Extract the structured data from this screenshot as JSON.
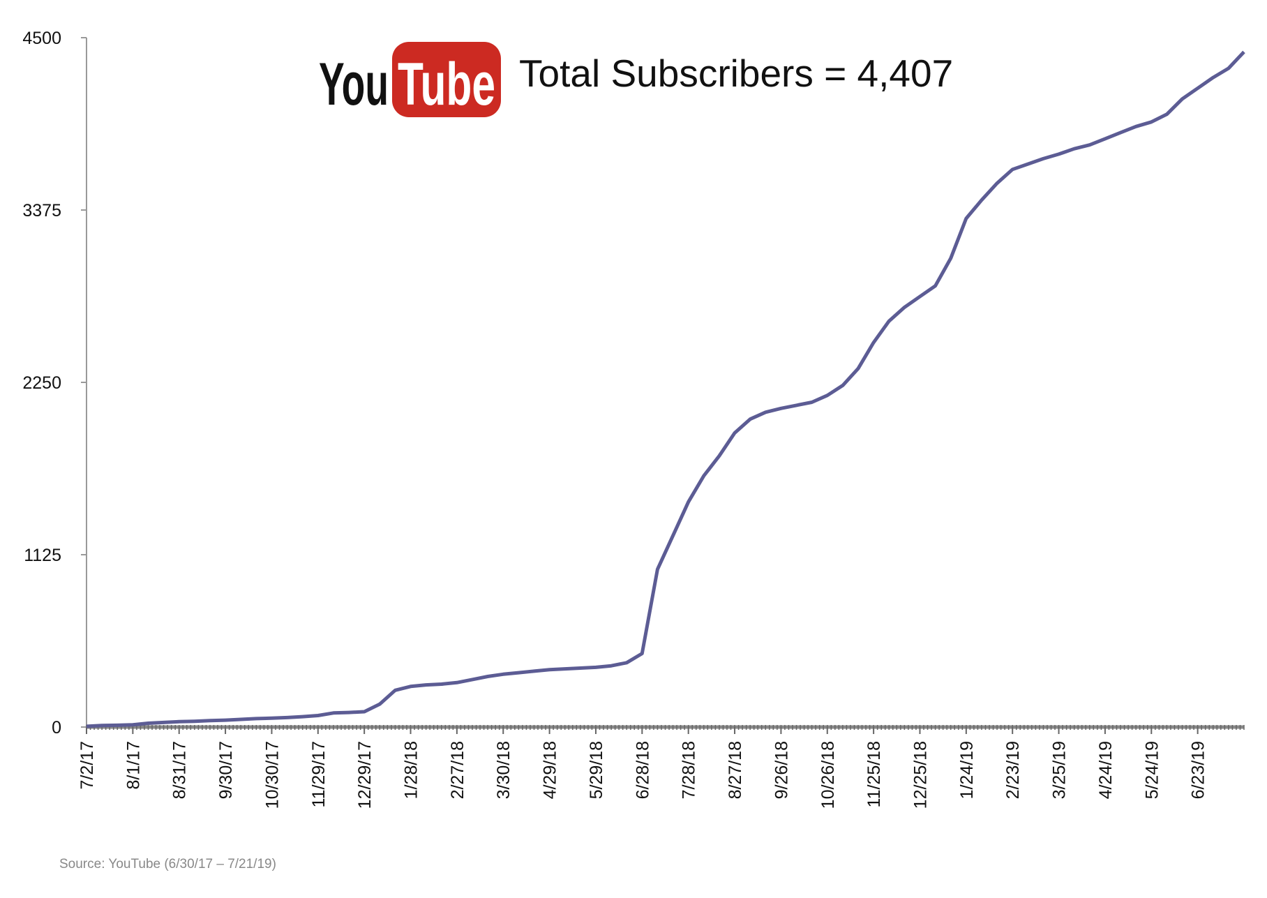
{
  "chart_data": {
    "type": "line",
    "title": "Total Subscribers = 4,407",
    "logo": [
      "You",
      "Tube"
    ],
    "source": "Source: YouTube (6/30/17 – 7/21/19)",
    "categories": [
      "7/2/17",
      null,
      null,
      "8/1/17",
      null,
      null,
      "8/31/17",
      null,
      null,
      "9/30/17",
      null,
      null,
      "10/30/17",
      null,
      null,
      "11/29/17",
      null,
      null,
      "12/29/17",
      null,
      null,
      "1/28/18",
      null,
      null,
      "2/27/18",
      null,
      null,
      "3/30/18",
      null,
      null,
      "4/29/18",
      null,
      null,
      "5/29/18",
      null,
      null,
      "6/28/18",
      null,
      null,
      "7/28/18",
      null,
      null,
      "8/27/18",
      null,
      null,
      "9/26/18",
      null,
      null,
      "10/26/18",
      null,
      null,
      "11/25/18",
      null,
      null,
      "12/25/18",
      null,
      null,
      "1/24/19",
      null,
      null,
      "2/23/19",
      null,
      null,
      "3/25/19",
      null,
      null,
      "4/24/19",
      null,
      null,
      "5/24/19",
      null,
      null,
      "6/23/19",
      null,
      null,
      null
    ],
    "values": [
      5,
      10,
      12,
      15,
      25,
      30,
      35,
      38,
      42,
      45,
      50,
      55,
      58,
      62,
      68,
      75,
      92,
      95,
      100,
      150,
      240,
      265,
      275,
      280,
      290,
      310,
      330,
      345,
      355,
      365,
      375,
      380,
      385,
      390,
      400,
      420,
      480,
      1030,
      1250,
      1470,
      1640,
      1770,
      1920,
      2010,
      2055,
      2080,
      2100,
      2120,
      2165,
      2230,
      2340,
      2510,
      2650,
      2740,
      2810,
      2880,
      3060,
      3320,
      3440,
      3550,
      3640,
      3675,
      3710,
      3740,
      3775,
      3800,
      3840,
      3880,
      3920,
      3950,
      4000,
      4100,
      4170,
      4240,
      4300,
      4407
    ],
    "color": "#5c5c94",
    "ylim": [
      0,
      4500
    ],
    "yticks": [
      0,
      1125,
      2250,
      3375,
      4500
    ],
    "logo_color": "#cc2a22"
  }
}
